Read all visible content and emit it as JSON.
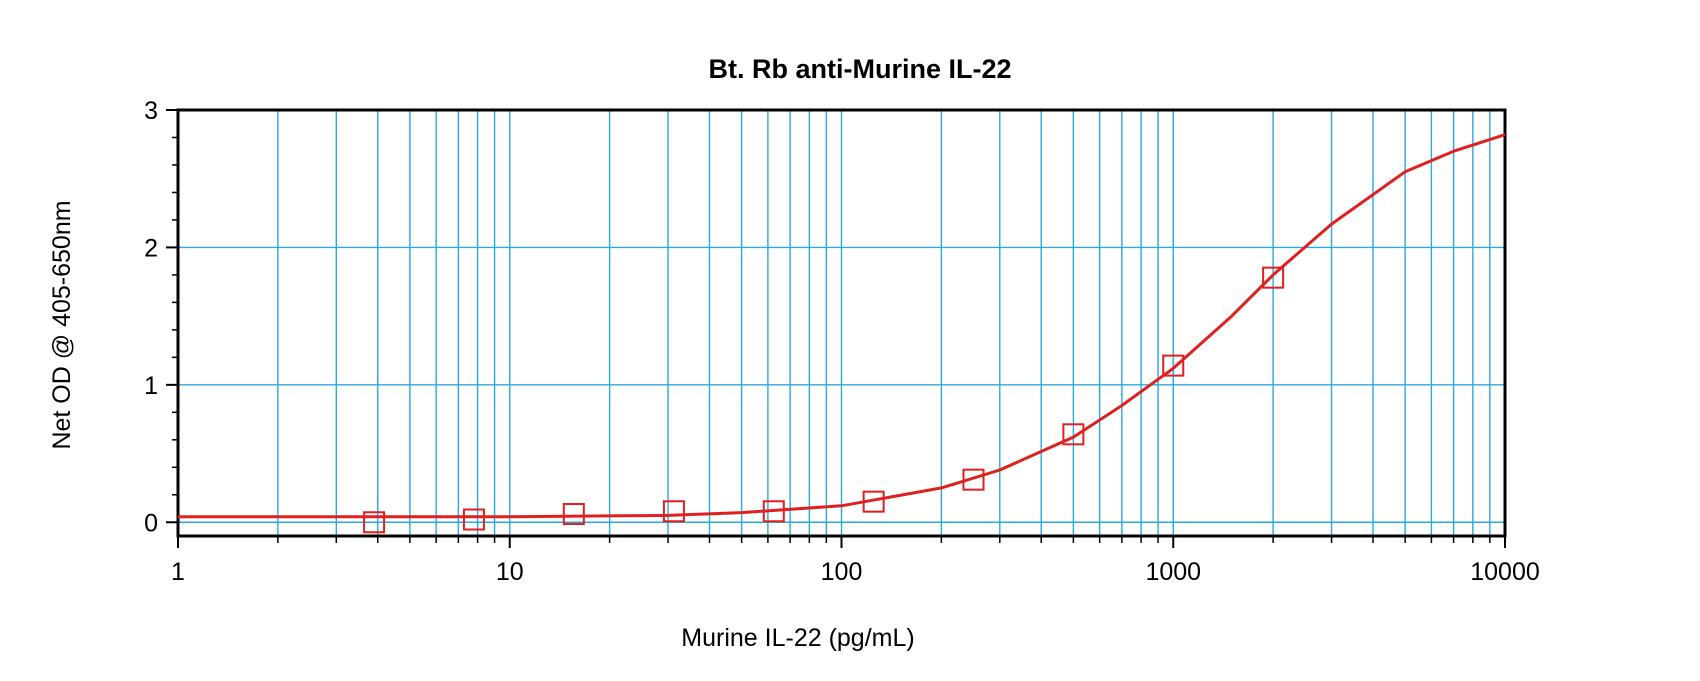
{
  "chart_data": {
    "type": "scatter",
    "title": "Bt. Rb anti-Murine IL-22",
    "xlabel": "Murine IL-22 (pg/mL)",
    "ylabel": "Net OD @ 405-650nm",
    "x_scale": "log",
    "xlim": [
      1,
      10000
    ],
    "ylim": [
      -0.1,
      3
    ],
    "x_ticks": [
      1,
      10,
      100,
      1000,
      10000
    ],
    "x_tick_labels": [
      "1",
      "10",
      "100",
      "1000",
      "10000"
    ],
    "y_ticks": [
      0,
      1,
      2,
      3
    ],
    "y_tick_labels": [
      "0",
      "1",
      "2",
      "3"
    ],
    "grid": true,
    "legend": "none",
    "colors": {
      "series": "#e02020",
      "grid": "#29a9e0",
      "axes": "#000000"
    },
    "series": [
      {
        "marker": "square-open",
        "x": [
          3.9,
          7.8,
          15.6,
          31.25,
          62.5,
          125,
          250,
          500,
          1000,
          2000
        ],
        "y": [
          0.0,
          0.02,
          0.06,
          0.08,
          0.08,
          0.15,
          0.31,
          0.64,
          1.14,
          1.78
        ]
      }
    ],
    "fit_curve": {
      "type": "line",
      "x": [
        1,
        10,
        30,
        50,
        100,
        200,
        300,
        500,
        700,
        1000,
        1500,
        2000,
        3000,
        5000,
        7000,
        10000
      ],
      "y": [
        0.04,
        0.04,
        0.05,
        0.07,
        0.12,
        0.25,
        0.38,
        0.62,
        0.85,
        1.12,
        1.5,
        1.8,
        2.17,
        2.55,
        2.7,
        2.82
      ]
    }
  }
}
